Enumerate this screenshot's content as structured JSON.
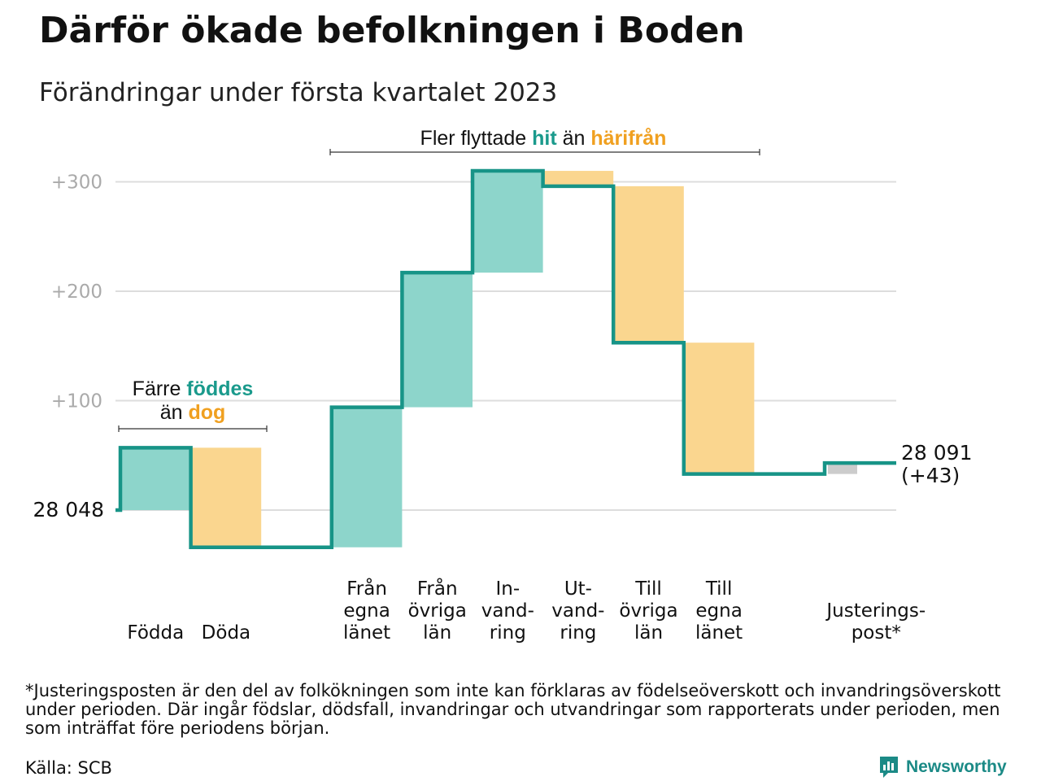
{
  "title": "Därför ökade befolkningen i Boden",
  "subtitle": "Förändringar under första kvartalet 2023",
  "colors": {
    "inflow": "#8dd5cb",
    "outflow": "#fad68f",
    "adjustment": "#cccccc",
    "line": "#179487",
    "teal_text": "#1a9a8c",
    "orange_text": "#f0a020",
    "grid": "#dddddd",
    "tick_text": "#aaaaaa"
  },
  "chart_data": {
    "type": "bar",
    "subtype": "waterfall",
    "start_label": "28 048",
    "start_value": 0,
    "yticks": [
      "+100",
      "+200",
      "+300"
    ],
    "ytick_values": [
      100,
      200,
      300
    ],
    "ylim": [
      -45,
      310
    ],
    "steps": [
      {
        "label": "Födda",
        "value": 57,
        "kind": "inflow"
      },
      {
        "label": "Döda",
        "value": -91,
        "kind": "outflow"
      },
      {
        "label": "",
        "value": 0,
        "kind": "spacer"
      },
      {
        "label": "Från egna länet",
        "value": 128,
        "kind": "inflow"
      },
      {
        "label": "Från övriga län",
        "value": 123,
        "kind": "inflow"
      },
      {
        "label": "In-vand-ring",
        "value": 93,
        "kind": "inflow"
      },
      {
        "label": "Ut-vand-ring",
        "value": -14,
        "kind": "outflow"
      },
      {
        "label": "Till övriga län",
        "value": -143,
        "kind": "outflow"
      },
      {
        "label": "Till egna länet",
        "value": -120,
        "kind": "outflow"
      },
      {
        "label": "",
        "value": 0,
        "kind": "spacer"
      },
      {
        "label": "Justerings-post*",
        "value": 10,
        "kind": "adjustment"
      }
    ],
    "category_labels": [
      {
        "lines": [
          "Födda"
        ]
      },
      {
        "lines": [
          "Döda"
        ]
      },
      {
        "lines": [
          "Från",
          "egna",
          "länet"
        ]
      },
      {
        "lines": [
          "Från",
          "övriga",
          "län"
        ]
      },
      {
        "lines": [
          "In-",
          "vand-",
          "ring"
        ]
      },
      {
        "lines": [
          "Ut-",
          "vand-",
          "ring"
        ]
      },
      {
        "lines": [
          "Till",
          "övriga",
          "län"
        ]
      },
      {
        "lines": [
          "Till",
          "egna",
          "länet"
        ]
      },
      {
        "lines": [
          "Justerings-",
          "post*"
        ]
      }
    ],
    "end_label": [
      "28 091",
      "(+43)"
    ],
    "annotations": [
      {
        "lines": [
          [
            {
              "text": "Färre ",
              "style": "plain"
            },
            {
              "text": "föddes",
              "style": "teal"
            }
          ],
          [
            {
              "text": "än ",
              "style": "plain"
            },
            {
              "text": "dog",
              "style": "orange"
            }
          ]
        ]
      },
      {
        "lines": [
          [
            {
              "text": "Fler flyttade ",
              "style": "plain"
            },
            {
              "text": "hit",
              "style": "teal"
            },
            {
              "text": " än ",
              "style": "plain"
            },
            {
              "text": "härifrån",
              "style": "orange"
            }
          ]
        ]
      }
    ]
  },
  "footnote": "*Justeringsposten är den del av folkökningen som inte kan förklaras av födelseöverskott och invandringsöverskott under perioden. Där ingår födslar, dödsfall, invandringar och utvandringar som rapporterats under perioden, men som inträffat före periodens början.",
  "source": "Källa: SCB",
  "brand": {
    "name": "Newsworthy",
    "logo_icon": "newsworthy-logo-icon"
  }
}
